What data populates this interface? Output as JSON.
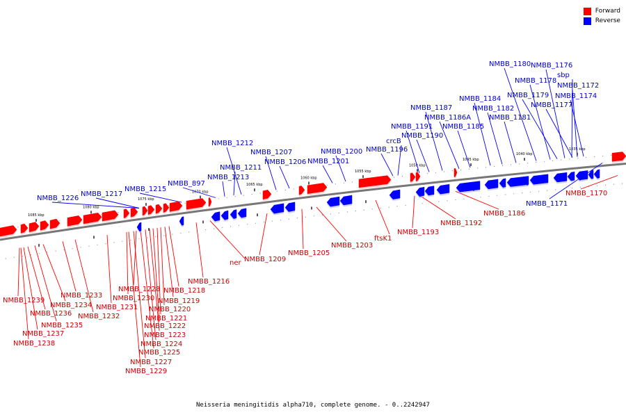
{
  "legend": [
    {
      "label": "Forward",
      "color": "#ff0000"
    },
    {
      "label": "Reverse",
      "color": "#0000ff"
    }
  ],
  "caption": "Neisseria meningitidis alpha710, complete genome. - 0..2242947",
  "colors": {
    "forward": "#ff0000",
    "forward_label": "#cc0000",
    "reverse": "#0000ff",
    "reverse_label": "#0000cc",
    "backbone": "#777777"
  },
  "ticks": [
    "1085 kbp",
    "1080 kbp",
    "1075 kbp",
    "1070 kbp",
    "1065 kbp",
    "1060 kbp",
    "1055 kbp",
    "1050 kbp",
    "1045 kbp",
    "1040 kbp",
    "1035 kbp"
  ],
  "reverse_genes": [
    "NMBB_1226",
    "NMBB_1217",
    "NMBB_1215",
    "NMBB_897",
    "NMBB_1213",
    "NMBB_1211",
    "NMBB_1212",
    "NMBB_1207",
    "NMBB_1206",
    "NMBB_1201",
    "NMBB_1200",
    "NMBB_1196",
    "crcB",
    "NMBB_1191",
    "NMBB_1190",
    "NMBB_1187",
    "NMBB_1186A",
    "NMBB_1185",
    "NMBB_1184",
    "NMBB_1182",
    "NMBB_1181",
    "NMBB_1180",
    "NMBB_1178",
    "NMBB_1179",
    "NMBB_1176",
    "sbp",
    "NMBB_1172",
    "NMBB_1174",
    "NMBB_1177",
    "NMBB_1171"
  ],
  "forward_genes": [
    "NMBB_1239",
    "NMBB_1236",
    "NMBB_1237",
    "NMBB_1238",
    "NMBB_1234",
    "NMBB_1235",
    "NMBB_1233",
    "NMBB_1232",
    "NMBB_1231",
    "NMBB_1228",
    "NMBB_1230",
    "NMBB_1218",
    "NMBB_1219",
    "NMBB_1220",
    "NMBB_1221",
    "NMBB_1222",
    "NMBB_1223",
    "NMBB_1224",
    "NMBB_1225",
    "NMBB_1227",
    "NMBB_1229",
    "NMBB_1216",
    "ner",
    "NMBB_1209",
    "NMBB_1205",
    "NMBB_1203",
    "ftsK1",
    "NMBB_1193",
    "NMBB_1192",
    "NMBB_1186",
    "NMBB_1170"
  ]
}
